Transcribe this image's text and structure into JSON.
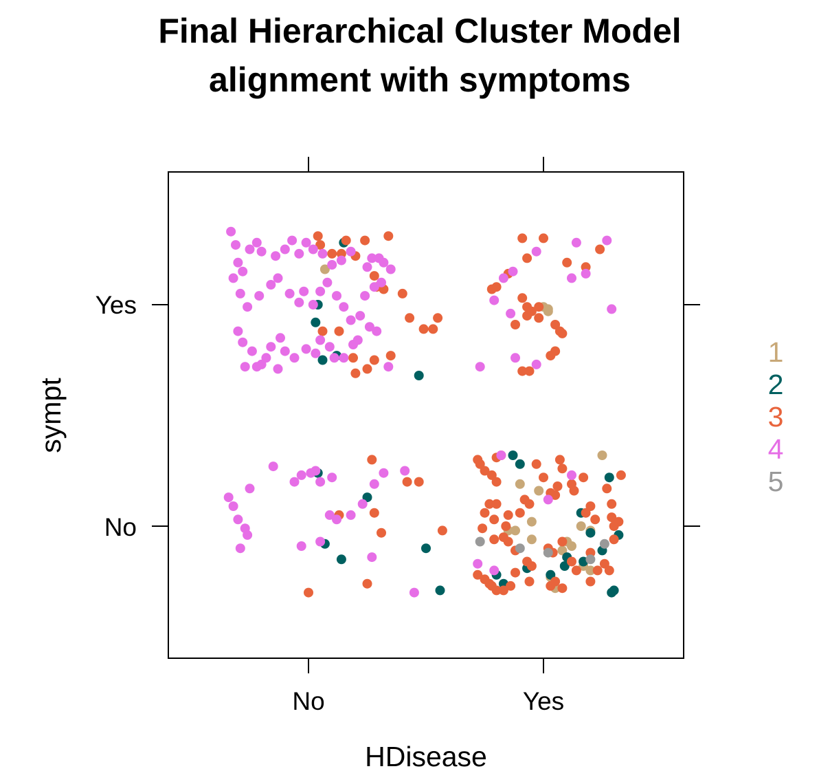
{
  "chart_data": {
    "type": "scatter",
    "title": "Final Hierarchical Cluster Model",
    "subtitle": "alignment with symptoms",
    "xlabel": "HDisease",
    "ylabel": "sympt",
    "x_categories": [
      "No",
      "Yes"
    ],
    "y_categories": [
      "No",
      "Yes"
    ],
    "jitter_note_hidden": true,
    "legend": {
      "position": "right",
      "entries": [
        {
          "label": "1",
          "color": "#C8A878"
        },
        {
          "label": "2",
          "color": "#006060"
        },
        {
          "label": "3",
          "color": "#E8643C"
        },
        {
          "label": "4",
          "color": "#E66EE6"
        },
        {
          "label": "5",
          "color": "#999999"
        }
      ]
    },
    "series": [
      {
        "name": "1",
        "color": "#C8A878",
        "points": [
          [
            1.07,
            2.16
          ],
          [
            2.02,
            1.97
          ],
          [
            2.05,
            1.79
          ],
          [
            1.95,
            1.02
          ],
          [
            2.0,
            1.99
          ],
          [
            2.02,
            1.98
          ],
          [
            1.95,
            0.94
          ],
          [
            2.08,
            0.89
          ],
          [
            2.1,
            0.93
          ],
          [
            2.12,
            0.91
          ],
          [
            1.9,
            1.19
          ],
          [
            1.98,
            1.16
          ],
          [
            2.03,
            0.77
          ],
          [
            2.05,
            0.72
          ],
          [
            2.16,
            1.0
          ],
          [
            2.2,
            0.98
          ],
          [
            2.25,
            1.32
          ],
          [
            1.85,
            0.98
          ],
          [
            2.17,
            0.82
          ],
          [
            2.2,
            0.8
          ],
          [
            1.88,
            0.98
          ]
        ]
      },
      {
        "name": "2",
        "color": "#006060",
        "points": [
          [
            1.15,
            2.28
          ],
          [
            1.04,
            2.0
          ],
          [
            1.03,
            1.92
          ],
          [
            1.06,
            1.75
          ],
          [
            1.12,
            1.77
          ],
          [
            1.47,
            1.68
          ],
          [
            1.04,
            1.24
          ],
          [
            1.25,
            1.13
          ],
          [
            1.07,
            0.92
          ],
          [
            1.14,
            0.85
          ],
          [
            1.5,
            0.9
          ],
          [
            1.56,
            0.71
          ],
          [
            1.87,
            1.32
          ],
          [
            1.9,
            1.28
          ],
          [
            1.93,
            0.81
          ],
          [
            1.8,
            0.78
          ],
          [
            1.83,
            0.74
          ],
          [
            2.09,
            0.82
          ],
          [
            2.1,
            0.86
          ],
          [
            2.16,
            1.06
          ],
          [
            2.2,
            0.97
          ],
          [
            2.25,
            0.89
          ],
          [
            2.28,
            1.22
          ],
          [
            2.32,
            0.96
          ],
          [
            2.29,
            0.7
          ],
          [
            2.3,
            0.71
          ],
          [
            2.17,
            0.84
          ],
          [
            2.03,
            0.78
          ]
        ]
      },
      {
        "name": "3",
        "color": "#E8643C",
        "points": [
          [
            1.04,
            2.31
          ],
          [
            1.05,
            2.27
          ],
          [
            1.1,
            2.23
          ],
          [
            1.14,
            2.23
          ],
          [
            1.16,
            2.29
          ],
          [
            1.2,
            2.22
          ],
          [
            1.24,
            2.29
          ],
          [
            1.34,
            2.31
          ],
          [
            1.28,
            2.13
          ],
          [
            1.29,
            2.08
          ],
          [
            1.32,
            2.07
          ],
          [
            1.4,
            2.05
          ],
          [
            1.43,
            1.94
          ],
          [
            1.49,
            1.89
          ],
          [
            1.55,
            1.94
          ],
          [
            1.53,
            1.89
          ],
          [
            1.06,
            1.88
          ],
          [
            1.13,
            1.88
          ],
          [
            1.19,
            1.76
          ],
          [
            1.25,
            1.71
          ],
          [
            1.28,
            1.75
          ],
          [
            1.35,
            1.77
          ],
          [
            1.2,
            1.69
          ],
          [
            1.78,
            2.07
          ],
          [
            1.8,
            2.08
          ],
          [
            1.91,
            2.3
          ],
          [
            1.93,
            2.21
          ],
          [
            2.0,
            2.3
          ],
          [
            2.1,
            2.19
          ],
          [
            2.18,
            2.17
          ],
          [
            2.24,
            2.25
          ],
          [
            1.85,
            2.14
          ],
          [
            1.91,
            2.03
          ],
          [
            1.93,
            1.95
          ],
          [
            1.95,
            1.97
          ],
          [
            1.98,
            1.94
          ],
          [
            1.93,
            1.99
          ],
          [
            1.98,
            1.99
          ],
          [
            2.05,
            1.91
          ],
          [
            2.07,
            1.88
          ],
          [
            2.08,
            1.87
          ],
          [
            1.88,
            1.91
          ],
          [
            1.94,
            1.7
          ],
          [
            2.03,
            1.77
          ],
          [
            2.05,
            1.79
          ],
          [
            1.91,
            1.7
          ],
          [
            1.13,
            1.05
          ],
          [
            1.28,
            1.06
          ],
          [
            1.27,
            1.3
          ],
          [
            1.31,
            0.97
          ],
          [
            1.42,
            1.2
          ],
          [
            1.47,
            1.2
          ],
          [
            1.57,
            0.98
          ],
          [
            1.0,
            0.7
          ],
          [
            1.25,
            0.74
          ],
          [
            1.72,
            1.3
          ],
          [
            1.73,
            1.28
          ],
          [
            1.75,
            1.25
          ],
          [
            1.78,
            1.23
          ],
          [
            1.8,
            1.31
          ],
          [
            1.82,
            1.32
          ],
          [
            1.8,
            1.2
          ],
          [
            1.77,
            1.1
          ],
          [
            1.8,
            1.1
          ],
          [
            1.75,
            1.06
          ],
          [
            1.79,
            1.03
          ],
          [
            1.84,
            1.0
          ],
          [
            1.85,
            1.05
          ],
          [
            1.9,
            1.06
          ],
          [
            1.92,
            1.12
          ],
          [
            1.94,
            1.1
          ],
          [
            1.97,
            1.28
          ],
          [
            2.0,
            1.22
          ],
          [
            2.03,
            1.15
          ],
          [
            2.05,
            1.14
          ],
          [
            2.06,
            1.18
          ],
          [
            2.07,
            1.3
          ],
          [
            2.08,
            1.26
          ],
          [
            2.12,
            1.19
          ],
          [
            2.13,
            1.16
          ],
          [
            2.17,
            1.22
          ],
          [
            2.18,
            1.06
          ],
          [
            2.2,
            1.09
          ],
          [
            2.22,
            1.03
          ],
          [
            2.27,
            1.17
          ],
          [
            2.29,
            1.1
          ],
          [
            2.29,
            1.04
          ],
          [
            2.3,
            1.0
          ],
          [
            2.32,
            1.02
          ],
          [
            2.33,
            1.23
          ],
          [
            1.74,
            0.99
          ],
          [
            1.79,
            0.94
          ],
          [
            1.83,
            0.95
          ],
          [
            1.88,
            0.89
          ],
          [
            1.85,
            0.93
          ],
          [
            1.93,
            0.84
          ],
          [
            1.95,
            0.82
          ],
          [
            2.02,
            0.9
          ],
          [
            2.04,
            0.88
          ],
          [
            2.08,
            0.93
          ],
          [
            2.12,
            0.84
          ],
          [
            2.14,
            0.8
          ],
          [
            2.2,
            0.88
          ],
          [
            2.23,
            0.8
          ],
          [
            2.28,
            0.8
          ],
          [
            2.3,
            0.94
          ],
          [
            1.72,
            0.78
          ],
          [
            1.75,
            0.76
          ],
          [
            1.77,
            0.74
          ],
          [
            1.78,
            0.73
          ],
          [
            1.8,
            0.71
          ],
          [
            1.83,
            0.71
          ],
          [
            1.86,
            0.73
          ],
          [
            1.88,
            0.79
          ],
          [
            1.94,
            0.75
          ],
          [
            2.03,
            0.73
          ],
          [
            2.05,
            0.75
          ],
          [
            2.08,
            0.72
          ],
          [
            2.2,
            0.75
          ],
          [
            2.26,
            0.83
          ]
        ]
      },
      {
        "name": "4",
        "color": "#E66EE6",
        "points": [
          [
            0.67,
            2.33
          ],
          [
            0.69,
            2.27
          ],
          [
            0.7,
            2.19
          ],
          [
            0.72,
            2.15
          ],
          [
            0.75,
            2.25
          ],
          [
            0.78,
            2.28
          ],
          [
            0.8,
            2.24
          ],
          [
            0.86,
            2.22
          ],
          [
            0.9,
            2.25
          ],
          [
            0.93,
            2.29
          ],
          [
            0.96,
            2.23
          ],
          [
            0.99,
            2.28
          ],
          [
            1.02,
            2.25
          ],
          [
            1.06,
            2.23
          ],
          [
            1.1,
            2.18
          ],
          [
            1.14,
            2.2
          ],
          [
            1.18,
            2.24
          ],
          [
            1.25,
            2.17
          ],
          [
            1.27,
            2.21
          ],
          [
            1.3,
            2.21
          ],
          [
            1.32,
            2.19
          ],
          [
            1.35,
            2.16
          ],
          [
            0.68,
            2.12
          ],
          [
            0.71,
            2.05
          ],
          [
            0.74,
            1.99
          ],
          [
            0.79,
            2.04
          ],
          [
            0.84,
            2.09
          ],
          [
            0.87,
            2.12
          ],
          [
            0.92,
            2.05
          ],
          [
            0.96,
            2.01
          ],
          [
            0.98,
            2.06
          ],
          [
            1.02,
            2.0
          ],
          [
            1.05,
            2.06
          ],
          [
            1.08,
            2.1
          ],
          [
            1.12,
            2.04
          ],
          [
            1.15,
            1.99
          ],
          [
            1.18,
            1.93
          ],
          [
            1.22,
            1.95
          ],
          [
            1.24,
            2.04
          ],
          [
            1.28,
            2.08
          ],
          [
            1.31,
            2.1
          ],
          [
            0.7,
            1.88
          ],
          [
            0.72,
            1.83
          ],
          [
            0.76,
            1.79
          ],
          [
            0.8,
            1.73
          ],
          [
            0.84,
            1.81
          ],
          [
            0.88,
            1.85
          ],
          [
            0.9,
            1.79
          ],
          [
            0.94,
            1.76
          ],
          [
            0.99,
            1.8
          ],
          [
            1.03,
            1.78
          ],
          [
            1.05,
            1.84
          ],
          [
            1.09,
            1.81
          ],
          [
            1.11,
            1.76
          ],
          [
            1.15,
            1.76
          ],
          [
            1.19,
            1.82
          ],
          [
            1.21,
            1.84
          ],
          [
            1.26,
            1.9
          ],
          [
            1.29,
            1.88
          ],
          [
            1.34,
            1.72
          ],
          [
            0.73,
            1.72
          ],
          [
            0.78,
            1.72
          ],
          [
            0.82,
            1.76
          ],
          [
            0.87,
            1.71
          ],
          [
            1.83,
            2.12
          ],
          [
            1.87,
            2.15
          ],
          [
            1.97,
            2.24
          ],
          [
            2.14,
            2.28
          ],
          [
            2.27,
            2.29
          ],
          [
            2.12,
            2.12
          ],
          [
            2.18,
            2.14
          ],
          [
            1.79,
            2.02
          ],
          [
            1.86,
            1.96
          ],
          [
            2.29,
            1.98
          ],
          [
            1.73,
            1.72
          ],
          [
            1.88,
            1.76
          ],
          [
            1.97,
            1.73
          ],
          [
            0.66,
            1.13
          ],
          [
            0.68,
            1.09
          ],
          [
            0.7,
            1.03
          ],
          [
            0.73,
            0.99
          ],
          [
            0.71,
            0.9
          ],
          [
            0.74,
            0.96
          ],
          [
            0.75,
            1.17
          ],
          [
            0.85,
            1.27
          ],
          [
            0.94,
            1.2
          ],
          [
            0.97,
            1.23
          ],
          [
            1.03,
            1.25
          ],
          [
            1.01,
            1.24
          ],
          [
            1.05,
            1.2
          ],
          [
            1.1,
            1.22
          ],
          [
            1.09,
            1.05
          ],
          [
            1.12,
            1.03
          ],
          [
            1.18,
            1.05
          ],
          [
            1.23,
            1.1
          ],
          [
            1.28,
            1.19
          ],
          [
            1.32,
            1.24
          ],
          [
            1.41,
            1.25
          ],
          [
            0.97,
            0.91
          ],
          [
            1.05,
            0.93
          ],
          [
            1.45,
            0.7
          ],
          [
            1.27,
            0.86
          ],
          [
            1.72,
            0.83
          ],
          [
            1.79,
            0.8
          ],
          [
            1.82,
            1.32
          ],
          [
            2.12,
            1.23
          ],
          [
            2.02,
            1.12
          ]
        ]
      },
      {
        "name": "5",
        "color": "#999999",
        "points": [
          [
            1.73,
            0.93
          ],
          [
            1.9,
            0.9
          ],
          [
            2.02,
            0.88
          ],
          [
            2.2,
            0.85
          ],
          [
            2.26,
            0.92
          ]
        ]
      }
    ]
  }
}
